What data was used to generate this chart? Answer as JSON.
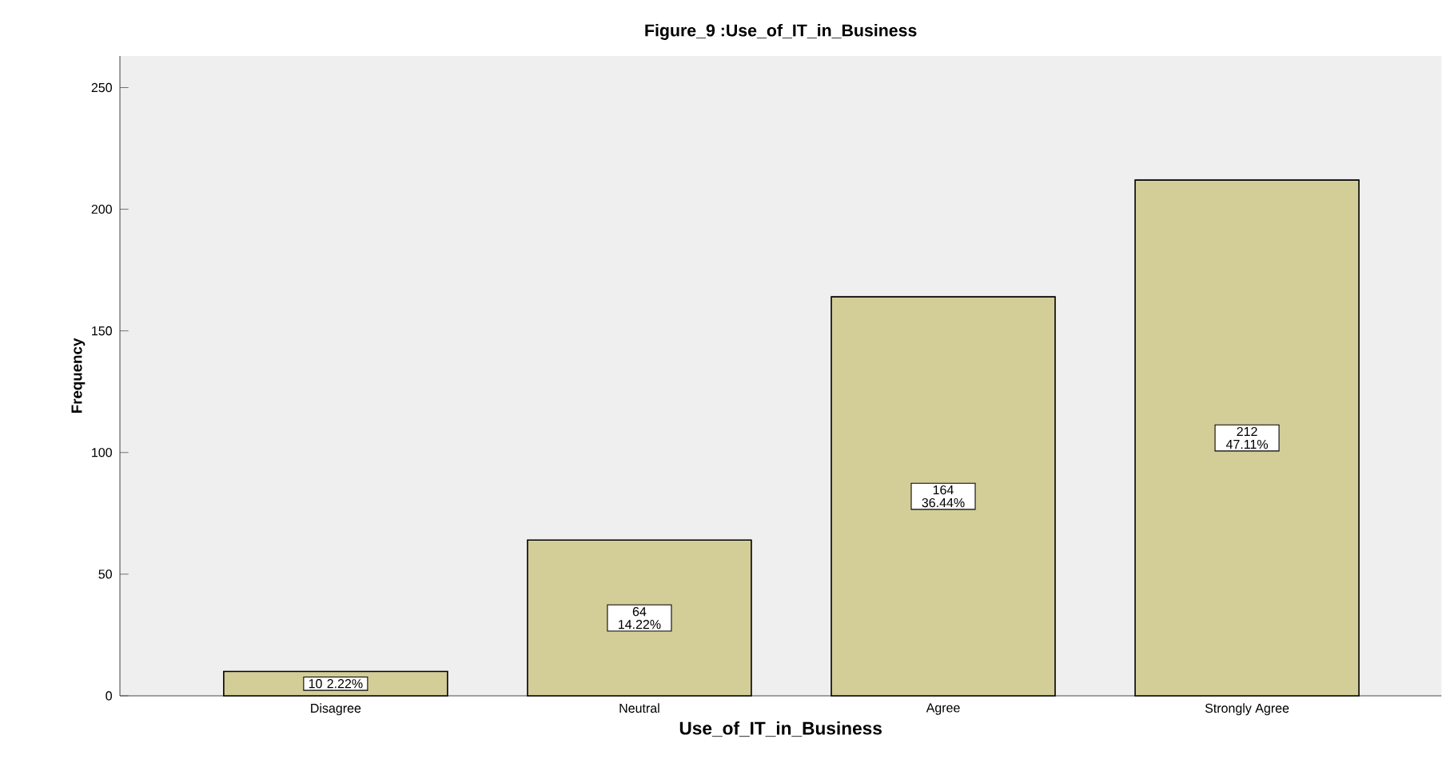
{
  "chart_data": {
    "type": "bar",
    "title": "Figure_9 :Use_of_IT_in_Business",
    "xlabel": "Use_of_IT_in_Business",
    "ylabel": "Frequency",
    "categories": [
      "Disagree",
      "Neutral",
      "Agree",
      "Strongly Agree"
    ],
    "values": [
      10,
      64,
      164,
      212
    ],
    "value_labels": [
      "10 2.22%",
      "64 14.22%",
      "164 36.44%",
      "212 47.11%"
    ],
    "color": "#d3cd98",
    "ylim": [
      0,
      263
    ],
    "yticks": [
      0,
      50,
      100,
      150,
      200,
      250
    ]
  }
}
